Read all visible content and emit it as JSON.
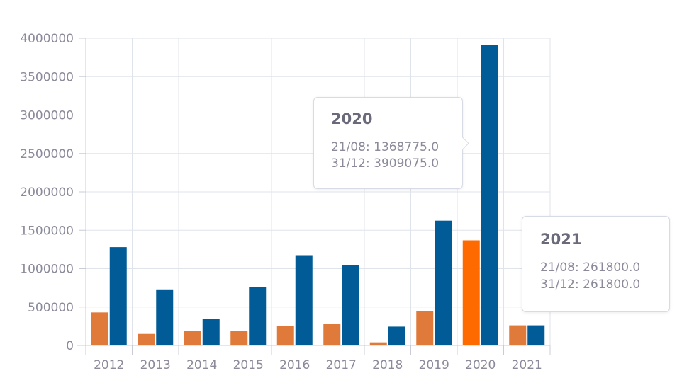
{
  "chart_data": {
    "type": "bar",
    "categories": [
      "2012",
      "2013",
      "2014",
      "2015",
      "2016",
      "2017",
      "2018",
      "2019",
      "2020",
      "2021"
    ],
    "series": [
      {
        "name": "21/08",
        "color": "#e07a3a",
        "highlight_color": "#ff6a00",
        "values": [
          430000,
          150000,
          190000,
          190000,
          250000,
          280000,
          40000,
          445000,
          1368775,
          261800
        ]
      },
      {
        "name": "31/12",
        "color": "#005b96",
        "values": [
          1280000,
          730000,
          345000,
          765000,
          1175000,
          1050000,
          245000,
          1625000,
          3909075,
          261800
        ]
      }
    ],
    "ylim": [
      0,
      4000000
    ],
    "yticks": [
      0,
      500000,
      1000000,
      1500000,
      2000000,
      2500000,
      3000000,
      3500000,
      4000000
    ],
    "grid": true,
    "highlighted_category": "2020"
  },
  "tooltips": [
    {
      "title": "2020",
      "lines": [
        "21/08: 1368775.0",
        "31/12: 3909075.0"
      ]
    },
    {
      "title": "2021",
      "lines": [
        "21/08: 261800.0",
        "31/12: 261800.0"
      ]
    }
  ]
}
